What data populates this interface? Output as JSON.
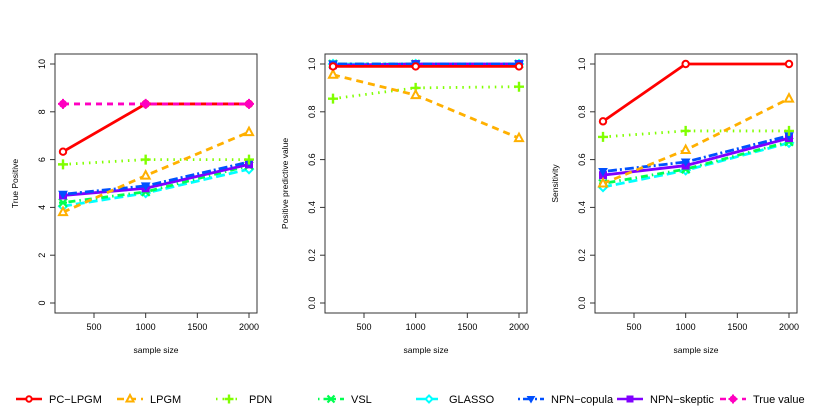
{
  "chart_data": [
    {
      "type": "line",
      "title": "",
      "xlabel": "sample size",
      "ylabel": "True Positive",
      "x": [
        200,
        1000,
        2000
      ],
      "xticks": [
        500,
        1000,
        1500,
        2000
      ],
      "yticks": [
        0,
        2,
        4,
        6,
        8,
        10
      ],
      "ylim": [
        0,
        10
      ],
      "xlim": [
        140,
        2060
      ],
      "grid": false,
      "series": [
        {
          "name": "PC-LPGM",
          "values": [
            6.33,
            8.33,
            8.33
          ]
        },
        {
          "name": "LPGM",
          "values": [
            3.8,
            5.33,
            7.15
          ]
        },
        {
          "name": "PDN",
          "values": [
            5.8,
            6.0,
            6.0
          ]
        },
        {
          "name": "VSL",
          "values": [
            4.2,
            4.65,
            5.75
          ]
        },
        {
          "name": "GLASSO",
          "values": [
            4.05,
            4.6,
            5.6
          ]
        },
        {
          "name": "NPN-copula",
          "values": [
            4.55,
            4.9,
            5.9
          ]
        },
        {
          "name": "NPN-skeptic",
          "values": [
            4.5,
            4.8,
            5.8
          ]
        },
        {
          "name": "True value",
          "values": [
            8.33,
            8.33,
            8.33
          ]
        }
      ]
    },
    {
      "type": "line",
      "title": "",
      "xlabel": "sample size",
      "ylabel": "Positive predictive value",
      "x": [
        200,
        1000,
        2000
      ],
      "xticks": [
        500,
        1000,
        1500,
        2000
      ],
      "yticks": [
        0.0,
        0.2,
        0.4,
        0.6,
        0.8,
        1.0
      ],
      "ylim": [
        0,
        1
      ],
      "xlim": [
        140,
        2060
      ],
      "grid": false,
      "series": [
        {
          "name": "PC-LPGM",
          "values": [
            0.99,
            0.99,
            0.99
          ]
        },
        {
          "name": "LPGM",
          "values": [
            0.955,
            0.87,
            0.69
          ]
        },
        {
          "name": "PDN",
          "values": [
            0.855,
            0.9,
            0.905
          ]
        },
        {
          "name": "VSL",
          "values": [
            1.0,
            1.0,
            1.0
          ]
        },
        {
          "name": "GLASSO",
          "values": [
            1.0,
            1.0,
            1.0
          ]
        },
        {
          "name": "NPN-copula",
          "values": [
            1.0,
            1.0,
            1.0
          ]
        },
        {
          "name": "NPN-skeptic",
          "values": [
            0.995,
            1.0,
            1.0
          ]
        }
      ]
    },
    {
      "type": "line",
      "title": "",
      "xlabel": "sample size",
      "ylabel": "Sensitivity",
      "x": [
        200,
        1000,
        2000
      ],
      "xticks": [
        500,
        1000,
        1500,
        2000
      ],
      "yticks": [
        0.0,
        0.2,
        0.4,
        0.6,
        0.8,
        1.0
      ],
      "ylim": [
        0,
        1
      ],
      "xlim": [
        140,
        2060
      ],
      "grid": false,
      "series": [
        {
          "name": "PC-LPGM",
          "values": [
            0.76,
            1.0,
            1.0
          ]
        },
        {
          "name": "LPGM",
          "values": [
            0.5,
            0.64,
            0.855
          ]
        },
        {
          "name": "PDN",
          "values": [
            0.695,
            0.72,
            0.72
          ]
        },
        {
          "name": "VSL",
          "values": [
            0.5,
            0.56,
            0.675
          ]
        },
        {
          "name": "GLASSO",
          "values": [
            0.485,
            0.555,
            0.67
          ]
        },
        {
          "name": "NPN-copula",
          "values": [
            0.55,
            0.59,
            0.7
          ]
        },
        {
          "name": "NPN-skeptic",
          "values": [
            0.535,
            0.575,
            0.69
          ]
        }
      ]
    }
  ],
  "legend": {
    "position": "bottom",
    "items": [
      {
        "name": "PC-LPGM",
        "color": "#ff0000",
        "dash": "",
        "marker": "circle-open",
        "width": 2.2
      },
      {
        "name": "LPGM",
        "color": "#ffb000",
        "dash": "7,5",
        "marker": "triangle",
        "width": 2.2
      },
      {
        "name": "PDN",
        "color": "#80ff00",
        "dash": "1.5,5",
        "marker": "plus",
        "width": 2.2
      },
      {
        "name": "VSL",
        "color": "#00ff50",
        "dash": "1.5,4,7,4",
        "marker": "x",
        "width": 2.2
      },
      {
        "name": "GLASSO",
        "color": "#00ffff",
        "dash": "9,4",
        "marker": "diamond",
        "width": 2.2
      },
      {
        "name": "NPN-copula",
        "color": "#0050ff",
        "dash": "2,3,9,3",
        "marker": "triangle-down",
        "width": 2.2
      },
      {
        "name": "NPN-skeptic",
        "color": "#8000ff",
        "dash": "",
        "marker": "square",
        "width": 2.2
      },
      {
        "name": "True value",
        "color": "#ff00c0",
        "dash": "6,5",
        "marker": "asterisk",
        "width": 2.2
      }
    ]
  }
}
